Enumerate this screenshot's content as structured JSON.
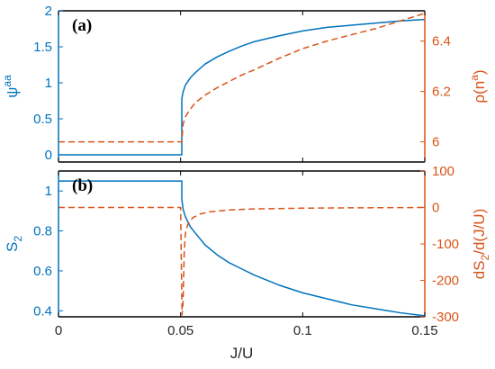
{
  "colors": {
    "left": "#0072BD",
    "right": "#D95319",
    "axis": "#000000"
  },
  "chart_data": [
    {
      "type": "line",
      "panel_label": "(a)",
      "xlabel": "",
      "xlim": [
        0,
        0.15
      ],
      "x_ticks": [
        0,
        0.05,
        0.1,
        0.15
      ],
      "x_tick_labels": [
        "",
        "",
        "",
        ""
      ],
      "ylabel": {
        "base": "ψ",
        "sup": "aa"
      },
      "ylim": [
        -0.1,
        2.0
      ],
      "y_ticks": [
        0,
        0.5,
        1,
        1.5,
        2
      ],
      "y_tick_labels": [
        "0",
        "0.5",
        "1",
        "1.5",
        "2"
      ],
      "y2label": {
        "base": "ρ(n",
        "sup": "a",
        "tail": ")"
      },
      "y2lim": [
        5.92,
        6.52
      ],
      "y2_ticks": [
        6,
        6.2,
        6.4
      ],
      "y2_tick_labels": [
        "6",
        "6.2",
        "6.4"
      ],
      "series": [
        {
          "axis": "left",
          "style": "solid",
          "x": [
            0,
            0.0505,
            0.0505,
            0.051,
            0.052,
            0.054,
            0.056,
            0.058,
            0.06,
            0.065,
            0.07,
            0.075,
            0.08,
            0.09,
            0.1,
            0.11,
            0.12,
            0.13,
            0.14,
            0.15
          ],
          "y": [
            0,
            0,
            0.78,
            0.87,
            0.97,
            1.07,
            1.14,
            1.2,
            1.26,
            1.36,
            1.44,
            1.51,
            1.57,
            1.65,
            1.72,
            1.77,
            1.8,
            1.83,
            1.86,
            1.88
          ]
        },
        {
          "axis": "right",
          "style": "dashed",
          "x": [
            0,
            0.0505,
            0.051,
            0.052,
            0.054,
            0.056,
            0.058,
            0.06,
            0.065,
            0.07,
            0.075,
            0.08,
            0.09,
            0.1,
            0.11,
            0.12,
            0.13,
            0.14,
            0.15
          ],
          "y": [
            6.0,
            6.0,
            6.07,
            6.1,
            6.13,
            6.155,
            6.17,
            6.185,
            6.215,
            6.24,
            6.265,
            6.285,
            6.33,
            6.37,
            6.4,
            6.425,
            6.45,
            6.48,
            6.51
          ]
        }
      ]
    },
    {
      "type": "line",
      "panel_label": "(b)",
      "xlabel": "J/U",
      "xlim": [
        0,
        0.15
      ],
      "x_ticks": [
        0,
        0.05,
        0.1,
        0.15
      ],
      "x_tick_labels": [
        "0",
        "0.05",
        "0.1",
        "0.15"
      ],
      "ylabel": {
        "base": "S",
        "sub": "2"
      },
      "ylim": [
        0.37,
        1.1
      ],
      "y_ticks": [
        0.4,
        0.6,
        0.8,
        1
      ],
      "y_tick_labels": [
        "0.4",
        "0.6",
        "0.8",
        "1"
      ],
      "y2label": {
        "base": "dS",
        "sub": "2",
        "tail": "/d(J/U)"
      },
      "y2lim": [
        -300,
        100
      ],
      "y2_ticks": [
        -300,
        -200,
        -100,
        0,
        100
      ],
      "y2_tick_labels": [
        "-300",
        "-200",
        "-100",
        "0",
        "100"
      ],
      "series": [
        {
          "axis": "left",
          "style": "solid",
          "x": [
            0,
            0.0505,
            0.0505,
            0.051,
            0.052,
            0.054,
            0.056,
            0.058,
            0.06,
            0.065,
            0.07,
            0.075,
            0.08,
            0.09,
            0.1,
            0.11,
            0.12,
            0.13,
            0.14,
            0.15
          ],
          "y": [
            1.05,
            1.05,
            0.96,
            0.91,
            0.87,
            0.82,
            0.79,
            0.76,
            0.73,
            0.68,
            0.64,
            0.61,
            0.58,
            0.53,
            0.49,
            0.46,
            0.43,
            0.41,
            0.39,
            0.375
          ]
        },
        {
          "axis": "right",
          "style": "dashed",
          "x": [
            0,
            0.05,
            0.0503,
            0.0506,
            0.051,
            0.0515,
            0.052,
            0.053,
            0.055,
            0.058,
            0.062,
            0.07,
            0.08,
            0.1,
            0.12,
            0.15
          ],
          "y": [
            0,
            0,
            -150,
            -295,
            -260,
            -120,
            -70,
            -45,
            -28,
            -18,
            -12,
            -7,
            -4,
            -2,
            -1,
            0
          ]
        }
      ]
    }
  ]
}
